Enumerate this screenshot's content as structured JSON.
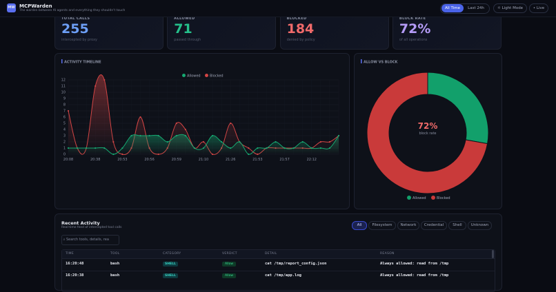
{
  "header": {
    "logo": "MW",
    "title": "MCPWarden",
    "subtitle": "The warden between AI agents and everything they shouldn't touch",
    "ranges": [
      "All Time",
      "Last 24h"
    ],
    "theme": "Light Mode",
    "live": "Live"
  },
  "stats": [
    {
      "label": "TOTAL CALLS",
      "value": "255",
      "note": "intercepted by proxy",
      "color": "#6d9ff6"
    },
    {
      "label": "ALLOWED",
      "value": "71",
      "note": "passed through",
      "color": "#25c08b"
    },
    {
      "label": "BLOCKED",
      "value": "184",
      "note": "denied by policy",
      "color": "#f06a6a"
    },
    {
      "label": "BLOCK RATE",
      "value": "72%",
      "note": "of all operations",
      "color": "#b49bf6"
    }
  ],
  "timeline": {
    "type": "line",
    "title": "ACTIVITY TIMELINE",
    "categories": [
      "20:08",
      null,
      null,
      "20:38",
      null,
      null,
      "20:53",
      null,
      null,
      "20:56",
      null,
      null,
      "20:59",
      null,
      null,
      "21:10",
      null,
      null,
      "21:26",
      null,
      null,
      "21:53",
      null,
      null,
      "21:57",
      null,
      null,
      "22:12",
      null,
      null,
      null
    ],
    "series": [
      {
        "name": "Allowed",
        "color": "#16a871",
        "values": [
          1,
          1,
          1,
          1,
          1,
          0,
          1,
          3,
          3,
          3,
          3,
          2,
          3,
          3,
          1,
          1,
          3,
          2,
          1,
          2,
          0,
          1,
          1,
          2,
          1,
          1,
          2,
          1,
          1,
          1,
          3
        ]
      },
      {
        "name": "Blocked",
        "color": "#d24545",
        "values": [
          7,
          1,
          1,
          11,
          12,
          2,
          0,
          1,
          6,
          1,
          0,
          1,
          5,
          4,
          1,
          2,
          0,
          1,
          5,
          2,
          1,
          0,
          1,
          1,
          1,
          1,
          1,
          1,
          2,
          2,
          3
        ]
      }
    ],
    "ylim": [
      0,
      12
    ],
    "yticks": [
      0,
      1,
      2,
      3,
      4,
      5,
      6,
      7,
      8,
      9,
      10,
      11,
      12
    ],
    "grid": true
  },
  "donut": {
    "type": "pie",
    "title": "ALLOW VS BLOCK",
    "categories": [
      "Allowed",
      "Blocked"
    ],
    "values": [
      71,
      184
    ],
    "colors": [
      "#12a06b",
      "#c93a3a"
    ],
    "center": "72%",
    "center_note": "block rate"
  },
  "activity": {
    "title": "Recent Activity",
    "subtitle": "Real-time feed of intercepted tool calls",
    "filters": [
      "All",
      "Filesystem",
      "Network",
      "Credential",
      "Shell",
      "Unknown"
    ],
    "search": "Search tools, details, rea",
    "table": {
      "columns": [
        "TIME",
        "TOOL",
        "CATEGORY",
        "VERDICT",
        "DETAIL",
        "REASON"
      ],
      "rows": [
        [
          "16:20:48",
          "bash",
          "SHELL",
          "Allow",
          "cat /tmp/report_config.json",
          "Always allowed: read from /tmp"
        ],
        [
          "16:20:38",
          "bash",
          "SHELL",
          "Allow",
          "cat /tmp/app.log",
          "Always allowed: read from /tmp"
        ]
      ]
    }
  }
}
